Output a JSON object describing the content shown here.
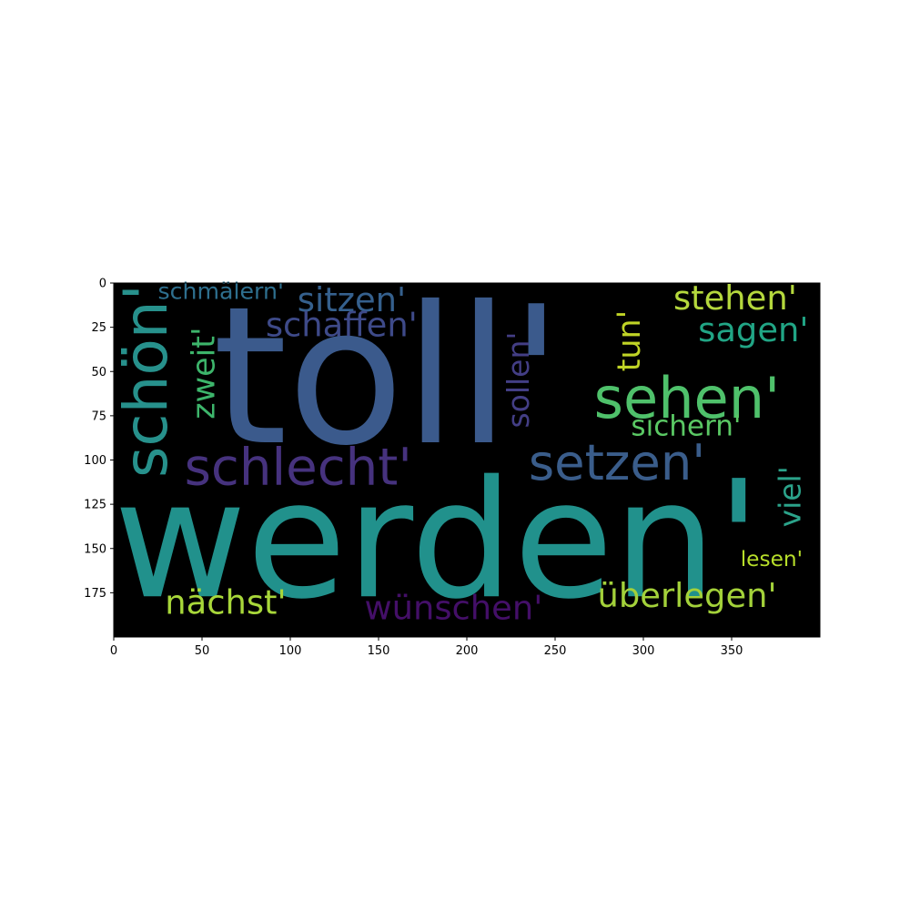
{
  "chart_data": {
    "type": "wordcloud",
    "title": "",
    "xlabel": "",
    "ylabel": "",
    "xlim": [
      0,
      400
    ],
    "ylim": [
      200,
      0
    ],
    "x_ticks": [
      "0",
      "50",
      "100",
      "150",
      "200",
      "250",
      "300",
      "350"
    ],
    "y_ticks": [
      "0",
      "25",
      "50",
      "75",
      "100",
      "125",
      "150",
      "175"
    ],
    "background_color": "#000000",
    "words": [
      {
        "text": "toll'",
        "x": 56,
        "y": 90,
        "font_size": 108,
        "rotate": 0,
        "color": "#3b5a8c"
      },
      {
        "text": "werden'",
        "x": 0,
        "y": 177,
        "font_size": 92,
        "rotate": 0,
        "color": "#21918c"
      },
      {
        "text": "sehen'",
        "x": 272,
        "y": 76,
        "font_size": 32,
        "rotate": 0,
        "color": "#4fc16b"
      },
      {
        "text": "schlecht'",
        "x": 40,
        "y": 114,
        "font_size": 29,
        "rotate": 0,
        "color": "#46327e"
      },
      {
        "text": "setzen'",
        "x": 235,
        "y": 111,
        "font_size": 28,
        "rotate": 0,
        "color": "#3a5d8b"
      },
      {
        "text": "schön'",
        "x": 30,
        "y": 110,
        "font_size": 34,
        "rotate": -90,
        "color": "#27918c"
      },
      {
        "text": "zweit'",
        "x": 57,
        "y": 77,
        "font_size": 18,
        "rotate": -90,
        "color": "#3db56b"
      },
      {
        "text": "sitzen'",
        "x": 104,
        "y": 16,
        "font_size": 19,
        "rotate": 0,
        "color": "#35608d"
      },
      {
        "text": "schaffen'",
        "x": 86,
        "y": 30,
        "font_size": 19,
        "rotate": 0,
        "color": "#3e4a89"
      },
      {
        "text": "schmälern'",
        "x": 25,
        "y": 9,
        "font_size": 13,
        "rotate": 0,
        "color": "#2e6f8e"
      },
      {
        "text": "sollen'",
        "x": 235,
        "y": 82,
        "font_size": 17,
        "rotate": -90,
        "color": "#433e85"
      },
      {
        "text": "tun'",
        "x": 298,
        "y": 50,
        "font_size": 18,
        "rotate": -90,
        "color": "#c0d426"
      },
      {
        "text": "stehen'",
        "x": 317,
        "y": 15,
        "font_size": 19,
        "rotate": 0,
        "color": "#b5d83d"
      },
      {
        "text": "sagen'",
        "x": 331,
        "y": 33,
        "font_size": 19,
        "rotate": 0,
        "color": "#21a585"
      },
      {
        "text": "sichern'",
        "x": 293,
        "y": 86,
        "font_size": 16,
        "rotate": 0,
        "color": "#5ac864"
      },
      {
        "text": "viel'",
        "x": 389,
        "y": 138,
        "font_size": 17,
        "rotate": -90,
        "color": "#2ba38a"
      },
      {
        "text": "lesen'",
        "x": 355,
        "y": 160,
        "font_size": 12,
        "rotate": 0,
        "color": "#b7de2a"
      },
      {
        "text": "überlegen'",
        "x": 274,
        "y": 183,
        "font_size": 19,
        "rotate": 0,
        "color": "#a3d13a"
      },
      {
        "text": "wünschen'",
        "x": 142,
        "y": 190,
        "font_size": 19,
        "rotate": 0,
        "color": "#440f68"
      },
      {
        "text": "nächst'",
        "x": 29,
        "y": 187,
        "font_size": 19,
        "rotate": 0,
        "color": "#a8d73a"
      }
    ]
  }
}
